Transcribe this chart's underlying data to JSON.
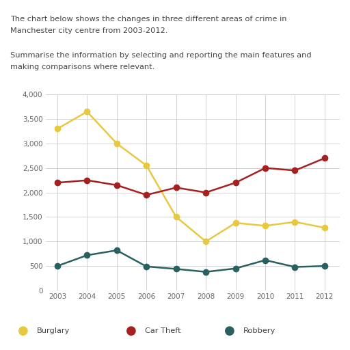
{
  "years": [
    2003,
    2004,
    2005,
    2006,
    2007,
    2008,
    2009,
    2010,
    2011,
    2012
  ],
  "burglary": [
    3300,
    3650,
    3000,
    2550,
    1500,
    1000,
    1380,
    1320,
    1400,
    1280
  ],
  "car_theft": [
    2200,
    2250,
    2150,
    1950,
    2100,
    2000,
    2200,
    2500,
    2450,
    2700
  ],
  "robbery": [
    500,
    720,
    820,
    490,
    440,
    380,
    450,
    620,
    480,
    500
  ],
  "burglary_color": "#E8C840",
  "car_theft_color": "#A52020",
  "robbery_color": "#2A6060",
  "ylim": [
    0,
    4000
  ],
  "yticks": [
    0,
    500,
    1000,
    1500,
    2000,
    2500,
    3000,
    3500,
    4000
  ],
  "ytick_labels": [
    "0",
    "500",
    "1,000",
    "1,500",
    "2,000",
    "2,500",
    "3,000",
    "3,500",
    "4,000"
  ],
  "text_block": "The chart below shows the changes in three different areas of crime in\nManchester city centre from 2003-2012.\n\nSummarise the information by selecting and reporting the main features and\nmaking comparisons where relevant.",
  "legend_labels": [
    "Burglary",
    "Car Theft",
    "Robbery"
  ],
  "marker_size": 6,
  "line_width": 1.8,
  "background_color": "#ffffff",
  "grid_color": "#cccccc",
  "text_color": "#444444",
  "tick_color": "#666666",
  "text_fontsize": 8.2,
  "tick_fontsize": 7.5
}
